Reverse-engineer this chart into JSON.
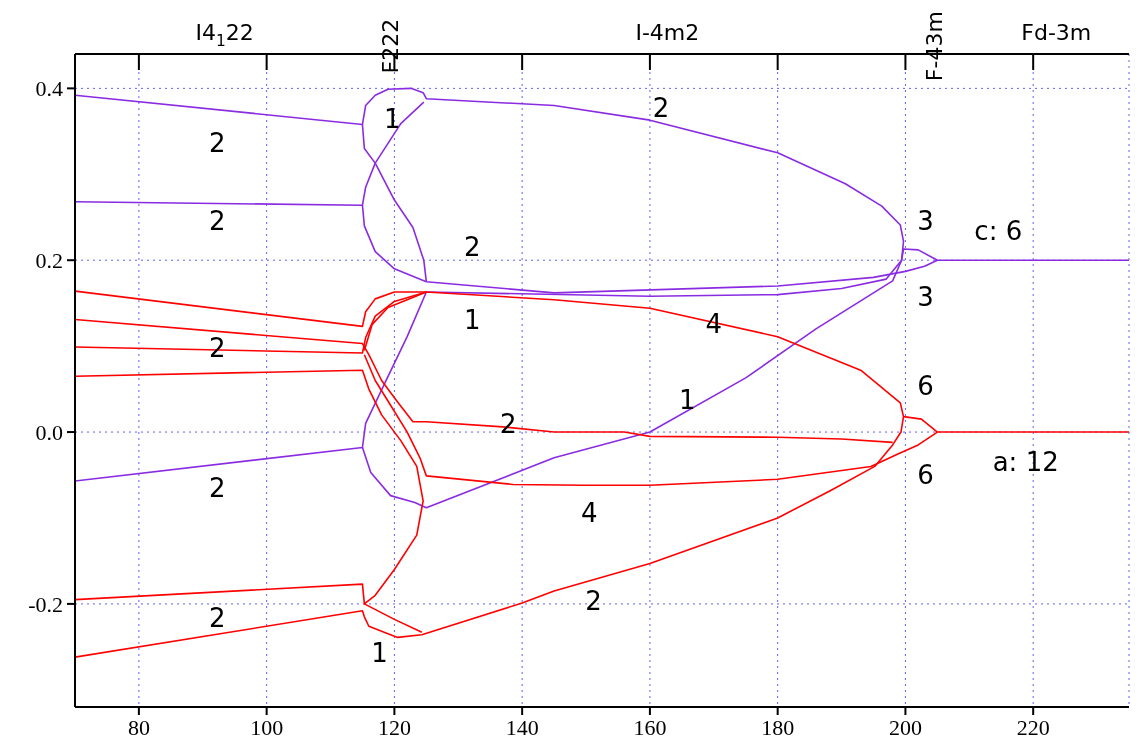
{
  "chart_data": {
    "type": "line",
    "xlim": [
      70,
      235
    ],
    "xticks": [
      80,
      100,
      120,
      140,
      160,
      180,
      200,
      220
    ],
    "ylim": [
      -0.32,
      0.44
    ],
    "yticks": [
      -0.2,
      {
        "value": 0,
        "label": "0.0"
      },
      0.2,
      0.4
    ],
    "grid": true,
    "marker": "none",
    "line_style": "solid",
    "series": [
      {
        "color": "#8a2be2",
        "x": [
          70,
          115,
          115.5,
          117,
          119,
          122.6,
          124.5,
          125,
          145,
          160,
          180,
          190.6,
          196.3,
          199.2,
          199.7,
          199.4,
          198,
          186,
          175,
          160,
          145,
          125,
          123.2,
          119.4,
          116.3,
          115,
          70
        ],
        "values": [
          0.392,
          0.358,
          0.38,
          0.392,
          0.399,
          0.4,
          0.395,
          0.388,
          0.38,
          0.363,
          0.325,
          0.289,
          0.263,
          0.241,
          0.222,
          0.2,
          0.176,
          0.12,
          0.063,
          0.0,
          -0.03,
          -0.088,
          -0.082,
          -0.074,
          -0.047,
          -0.018,
          -0.057
        ]
      },
      {
        "color": "#8a2be2",
        "x": [
          115,
          115.3,
          117,
          120,
          122.9,
          124.6,
          125
        ],
        "values": [
          0.358,
          0.33,
          0.313,
          0.27,
          0.238,
          0.2,
          0.175
        ]
      },
      {
        "color": "#8a2be2",
        "x": [
          124.6,
          121,
          117,
          115.5,
          115,
          70
        ],
        "values": [
          0.384,
          0.359,
          0.313,
          0.285,
          0.264,
          0.268
        ]
      },
      {
        "color": "#8a2be2",
        "x": [
          115,
          115.3,
          117,
          120,
          125,
          145,
          180,
          195,
          200,
          203,
          205,
          235
        ],
        "values": [
          0.264,
          0.24,
          0.21,
          0.19,
          0.175,
          0.162,
          0.17,
          0.18,
          0.187,
          0.193,
          0.2,
          0.2
        ]
      },
      {
        "color": "#8a2be2",
        "x": [
          115,
          115.5,
          118.5,
          122,
          125,
          160,
          180,
          190,
          197,
          199.4,
          199.7,
          202,
          205
        ],
        "values": [
          -0.018,
          0.01,
          0.057,
          0.111,
          0.163,
          0.158,
          0.16,
          0.167,
          0.178,
          0.2,
          0.213,
          0.212,
          0.2
        ]
      },
      {
        "color": "#ff0000",
        "x": [
          70,
          115,
          115.5,
          117,
          120,
          125,
          145,
          160,
          180,
          193,
          199.2,
          199.7,
          199.3,
          198,
          195.2,
          188.3,
          180,
          160,
          145,
          140,
          124.3,
          120.5,
          116,
          115.3,
          115,
          70
        ],
        "values": [
          0.164,
          0.123,
          0.14,
          0.155,
          0.163,
          0.163,
          0.154,
          0.144,
          0.111,
          0.072,
          0.034,
          0.018,
          0.0,
          -0.015,
          -0.04,
          -0.068,
          -0.1,
          -0.153,
          -0.185,
          -0.199,
          -0.236,
          -0.239,
          -0.226,
          -0.215,
          -0.208,
          -0.262
        ]
      },
      {
        "color": "#ff0000",
        "x": [
          70,
          115,
          116,
          118,
          120.5,
          122.9,
          125,
          137,
          145,
          156,
          160,
          180,
          190,
          198
        ],
        "values": [
          0.131,
          0.103,
          0.09,
          0.06,
          0.035,
          0.012,
          0.012,
          0.006,
          0.0,
          0.0,
          -0.005,
          -0.006,
          -0.008,
          -0.012
        ]
      },
      {
        "color": "#ff0000",
        "x": [
          70,
          115,
          115.5,
          117,
          120,
          125
        ],
        "values": [
          0.099,
          0.092,
          0.11,
          0.135,
          0.152,
          0.163
        ]
      },
      {
        "color": "#ff0000",
        "x": [
          70,
          115,
          116,
          118,
          121,
          123.5,
          124.5,
          123.5,
          120,
          117,
          115.3,
          115,
          70
        ],
        "values": [
          0.065,
          0.072,
          0.05,
          0.02,
          -0.01,
          -0.04,
          -0.08,
          -0.12,
          -0.16,
          -0.19,
          -0.2,
          -0.177,
          -0.195
        ]
      },
      {
        "color": "#ff0000",
        "x": [
          115.3,
          116.5,
          119,
          125
        ],
        "values": [
          0.095,
          0.125,
          0.145,
          0.163
        ]
      },
      {
        "color": "#ff0000",
        "x": [
          115.3,
          117,
          119.5,
          122,
          124,
          125,
          138.6,
          149.7,
          160,
          180,
          194.6,
          199,
          202,
          205,
          235
        ],
        "values": [
          0.09,
          0.06,
          0.03,
          0.0,
          -0.03,
          -0.051,
          -0.061,
          -0.062,
          -0.062,
          -0.055,
          -0.04,
          -0.025,
          -0.015,
          0.0,
          0.0
        ]
      },
      {
        "color": "#ff0000",
        "x": [
          199.7,
          202.5,
          205
        ],
        "values": [
          0.018,
          0.015,
          0.0
        ]
      },
      {
        "color": "#ff0000",
        "x": [
          115.3,
          120,
          124.3
        ],
        "values": [
          -0.2,
          -0.218,
          -0.233
        ]
      }
    ],
    "annotations": [
      "I4$_{1}$22",
      "F222",
      "I-4m2",
      "F-43m",
      "Fd-3m",
      "2",
      "2",
      "2",
      "2",
      "2",
      "1",
      "2",
      "2",
      "1",
      "4",
      "1",
      "2",
      "4",
      "2",
      "1",
      "3",
      "3",
      "6",
      "6",
      "c: 6",
      "a: 12"
    ]
  }
}
